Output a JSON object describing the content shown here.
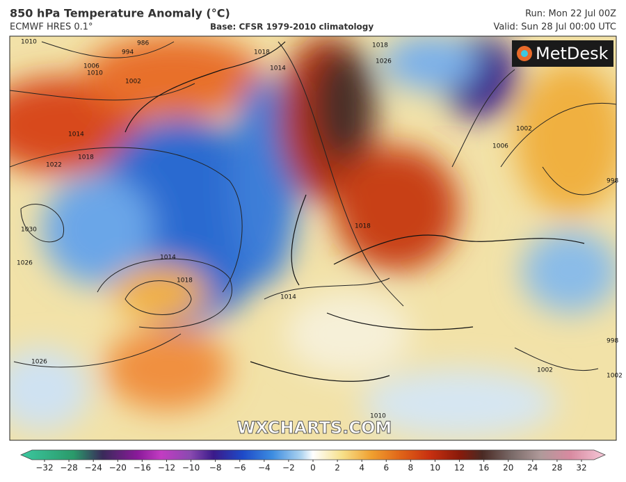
{
  "header": {
    "title": "850 hPa Temperature Anomaly (°C)",
    "model": "ECMWF HRES 0.1°",
    "base": "Base: CFSR 1979-2010 climatology",
    "run": "Run: Mon 22 Jul 00Z",
    "valid": "Valid: Sun 28 Jul 00:00 UTC"
  },
  "logo": "MetDesk",
  "watermark": "WXCHARTS.COM",
  "isobars": [
    "1010",
    "986",
    "994",
    "1002",
    "1006",
    "1010",
    "1014",
    "1018",
    "1022",
    "1030",
    "1026",
    "1014",
    "1018",
    "1014",
    "1018",
    "1026",
    "1026",
    "1018",
    "1014",
    "1018",
    "1006",
    "1002",
    "998",
    "1010",
    "1002",
    "998",
    "1002"
  ],
  "colorbar": {
    "ticks": [
      "−32",
      "−28",
      "−24",
      "−20",
      "−16",
      "−12",
      "−10",
      "−8",
      "−6",
      "−4",
      "−2",
      "0",
      "2",
      "4",
      "6",
      "8",
      "10",
      "12",
      "16",
      "20",
      "24",
      "28",
      "32"
    ]
  }
}
